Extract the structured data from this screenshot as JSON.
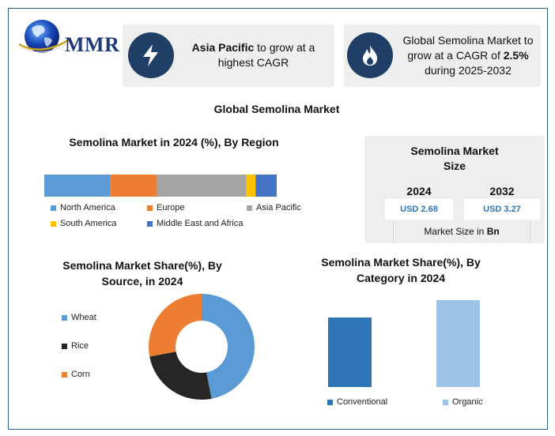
{
  "brand": {
    "name": "MMR"
  },
  "highlights": [
    {
      "bold": "Asia Pacific",
      "text": " to grow at a highest CAGR",
      "icon": "lightning-icon"
    },
    {
      "text": "Global Semolina Market to grow at a CAGR of ",
      "bold": "2.5%",
      "text_end": " during 2025-2032",
      "icon": "flame-icon"
    }
  ],
  "main_title": "Global Semolina Market",
  "market_size": {
    "title": "Semolina Market Size",
    "years": [
      "2024",
      "2032"
    ],
    "values": [
      "USD 2.68",
      "USD 3.27"
    ],
    "footer_prefix": "Market Size in ",
    "footer_bold": "Bn"
  },
  "chart_data": [
    {
      "type": "bar",
      "orientation": "horizontal-stacked",
      "title": "Semolina Market in 2024 (%), By Region",
      "series": [
        {
          "name": "North America",
          "value": 28
        },
        {
          "name": "Europe",
          "value": 20
        },
        {
          "name": "Asia Pacific",
          "value": 38
        },
        {
          "name": "South America",
          "value": 4
        },
        {
          "name": "Middle East and Africa",
          "value": 9
        }
      ],
      "colors": [
        "#5b9bd5",
        "#ed7d31",
        "#a5a5a5",
        "#ffc000",
        "#4472c4"
      ],
      "legend": "bottom"
    },
    {
      "type": "pie",
      "variant": "donut",
      "title": "Semolina Market Share(%), By Source, in 2024",
      "categories": [
        "Wheat",
        "Rice",
        "Corn"
      ],
      "values": [
        47,
        25,
        28
      ],
      "colors": [
        "#5b9bd5",
        "#262626",
        "#ed7d31"
      ],
      "legend": "left"
    },
    {
      "type": "bar",
      "title": "Semolina Market Share(%), By Category in 2024",
      "categories": [
        "Conventional",
        "Organic"
      ],
      "values": [
        64,
        80
      ],
      "ylim": [
        0,
        80
      ],
      "colors": [
        "#2e75b6",
        "#9dc3e6"
      ],
      "legend": "bottom"
    }
  ]
}
